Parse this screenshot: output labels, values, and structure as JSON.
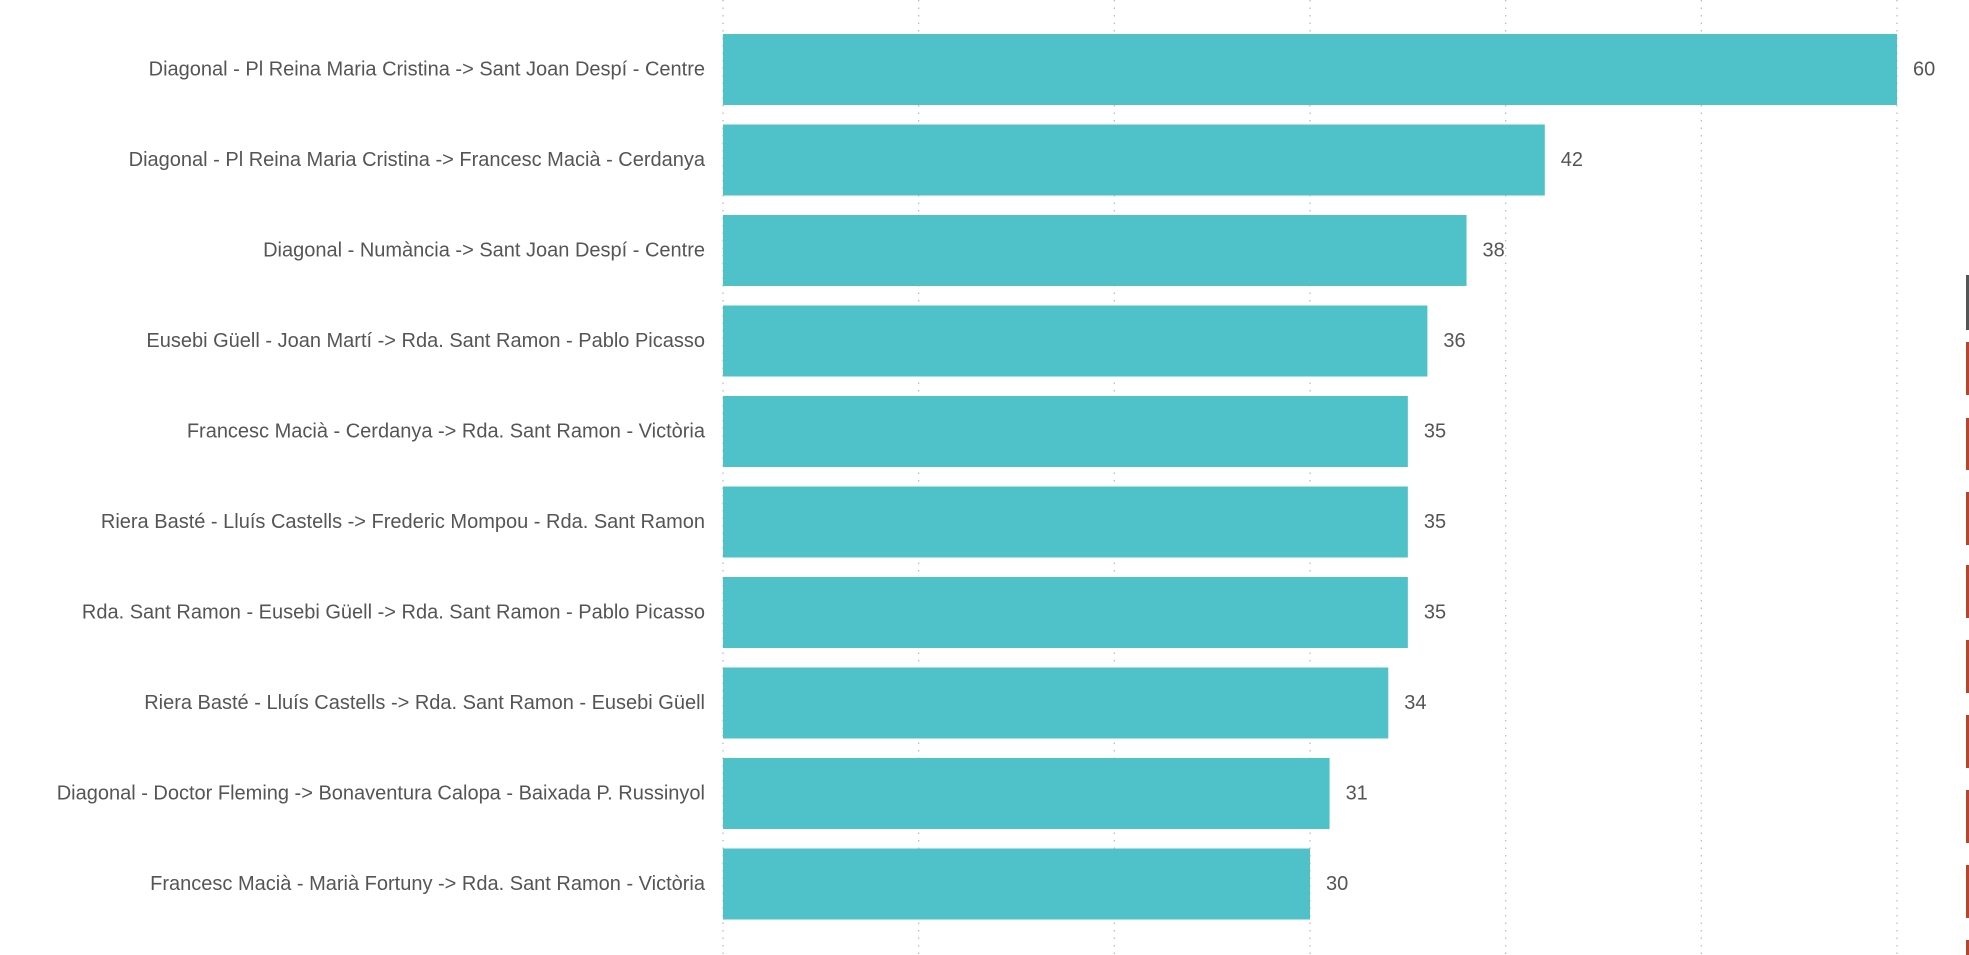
{
  "colors": {
    "bar": "#4fc1c9",
    "text": "#555555",
    "grid": "#bdbdbd",
    "edge_accent": "#b5452c"
  },
  "chart_data": {
    "type": "bar",
    "orientation": "horizontal",
    "title": "",
    "xlabel": "",
    "ylabel": "",
    "categories": [
      "Diagonal - Pl Reina Maria Cristina -> Sant Joan Despí - Centre",
      "Diagonal - Pl Reina Maria Cristina -> Francesc Macià - Cerdanya",
      "Diagonal - Numància -> Sant Joan Despí - Centre",
      "Eusebi Güell - Joan Martí -> Rda. Sant Ramon - Pablo Picasso",
      "Francesc Macià - Cerdanya -> Rda. Sant Ramon - Victòria",
      "Riera Basté - Lluís Castells -> Frederic Mompou - Rda. Sant Ramon",
      "Rda. Sant Ramon - Eusebi Güell -> Rda. Sant Ramon - Pablo Picasso",
      "Riera Basté - Lluís Castells -> Rda. Sant Ramon - Eusebi Güell",
      "Diagonal - Doctor Fleming -> Bonaventura Calopa - Baixada P. Russinyol",
      "Francesc Macià - Marià Fortuny -> Rda. Sant Ramon - Victòria"
    ],
    "values": [
      60,
      42,
      38,
      36,
      35,
      35,
      35,
      34,
      31,
      30
    ],
    "value_labels": [
      "60",
      "42",
      "38",
      "36",
      "35",
      "35",
      "35",
      "34",
      "31",
      "30"
    ],
    "xlim": [
      0,
      60
    ],
    "grid": true,
    "gridline_values": [
      0,
      10,
      20,
      30,
      40,
      50,
      60
    ],
    "data_labels": true,
    "legend": "none"
  }
}
